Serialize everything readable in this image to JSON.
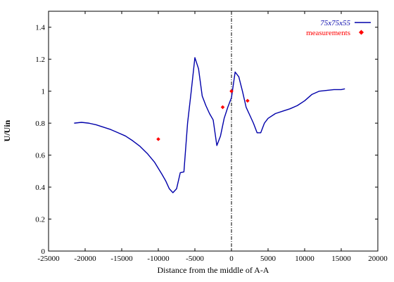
{
  "chart_data": {
    "type": "line",
    "title": "",
    "xlabel": "Distance from the middle of A-A",
    "ylabel": "U/Uin",
    "xlim": [
      -25000,
      20000
    ],
    "ylim": [
      0,
      1.5
    ],
    "xticks": [
      -25000,
      -20000,
      -15000,
      -10000,
      -5000,
      0,
      5000,
      10000,
      15000,
      20000
    ],
    "yticks": [
      0,
      0.2,
      0.4,
      0.6,
      0.8,
      1,
      1.2,
      1.4
    ],
    "xtick_labels": [
      "-25000",
      "-20000",
      "-15000",
      "-10000",
      "-5000",
      "0",
      "5000",
      "10000",
      "15000",
      "20000"
    ],
    "ytick_labels": [
      "0",
      "0.2",
      "0.4",
      "0.6",
      "0.8",
      "1",
      "1.2",
      "1.4"
    ],
    "grid": false,
    "legend_position": "top-right",
    "vertical_reference_line": {
      "x": 0,
      "style": "dash-dot"
    },
    "series": [
      {
        "name": "75x75x55",
        "kind": "line",
        "color": "#0000aa",
        "x": [
          -21500,
          -20500,
          -19500,
          -18500,
          -17500,
          -16500,
          -15500,
          -14500,
          -13500,
          -12500,
          -11500,
          -10500,
          -9500,
          -9000,
          -8500,
          -8000,
          -7500,
          -7000,
          -6500,
          -6000,
          -5500,
          -5000,
          -4500,
          -4000,
          -3500,
          -3000,
          -2500,
          -2000,
          -1500,
          -1000,
          -500,
          0,
          500,
          1000,
          1500,
          2000,
          2500,
          3000,
          3500,
          4000,
          4500,
          5000,
          6000,
          7000,
          8000,
          9000,
          10000,
          11000,
          12000,
          13000,
          14000,
          15000,
          15500
        ],
        "y": [
          0.8,
          0.805,
          0.8,
          0.79,
          0.775,
          0.76,
          0.74,
          0.72,
          0.69,
          0.655,
          0.61,
          0.555,
          0.48,
          0.44,
          0.39,
          0.365,
          0.39,
          0.49,
          0.495,
          0.8,
          1.0,
          1.21,
          1.14,
          0.97,
          0.91,
          0.86,
          0.82,
          0.66,
          0.72,
          0.83,
          0.9,
          0.96,
          1.12,
          1.09,
          1.0,
          0.9,
          0.85,
          0.8,
          0.74,
          0.74,
          0.8,
          0.83,
          0.86,
          0.875,
          0.89,
          0.91,
          0.94,
          0.98,
          1.0,
          1.005,
          1.01,
          1.01,
          1.015
        ]
      },
      {
        "name": "measurements",
        "kind": "marker",
        "color": "#ff0000",
        "x": [
          -10000,
          -1200,
          0,
          2200
        ],
        "y": [
          0.7,
          0.9,
          1.0,
          0.94
        ]
      }
    ]
  }
}
